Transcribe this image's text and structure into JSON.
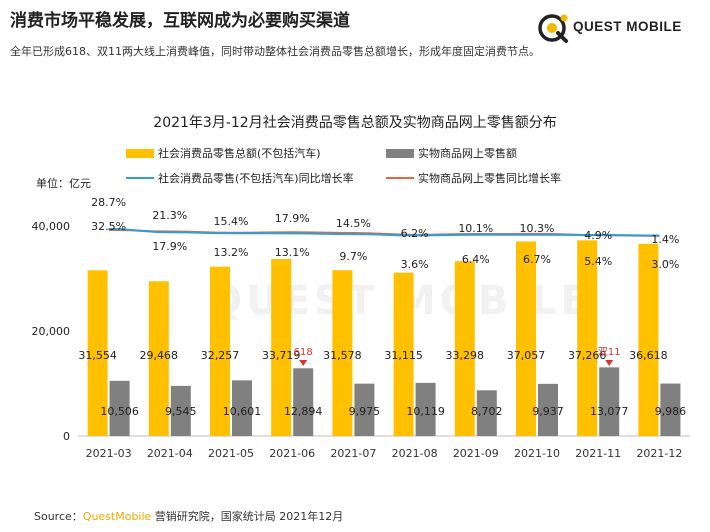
{
  "header": {
    "title": "消费市场平稳发展，互联网成为必要购买渠道",
    "subtitle": "全年已形成618、双11两大线上消费峰值，同时带动整体社会消费品零售总额增长，形成年度固定消费节点。"
  },
  "logo": {
    "text": "QUEST MOBILE"
  },
  "watermark": "QUEST MOBILE",
  "footer": {
    "prefix": "Source：",
    "brand": "QuestMobile",
    "rest": " 营销研究院，国家统计局 2021年12月"
  },
  "colors": {
    "total_bar": "#ffc000",
    "online_bar": "#808080",
    "total_line": "#2e9fd8",
    "online_line": "#e8663c",
    "accent": "#f0a800",
    "event": "#e0302e"
  },
  "chart_data": {
    "type": "bar",
    "title": "2021年3月-12月社会消费品零售总额及实物商品网上零售额分布",
    "unit_label": "单位：亿元",
    "categories": [
      "2021-03",
      "2021-04",
      "2021-05",
      "2021-06",
      "2021-07",
      "2021-08",
      "2021-09",
      "2021-10",
      "2021-11",
      "2021-12"
    ],
    "ylim": [
      0,
      50000
    ],
    "yticks": [
      {
        "value": 0,
        "label": "0"
      },
      {
        "value": 20000,
        "label": "20,000"
      },
      {
        "value": 40000,
        "label": "40,000"
      }
    ],
    "series": [
      {
        "name": "社会消费品零售总额(不包括汽车)",
        "kind": "bar",
        "values": [
          31554,
          29468,
          32257,
          33719,
          31578,
          31115,
          33298,
          37057,
          37266,
          36618
        ],
        "labels": [
          "31,554",
          "29,468",
          "32,257",
          "33,719",
          "31,578",
          "31,115",
          "33,298",
          "37,057",
          "37,266",
          "36,618"
        ]
      },
      {
        "name": "实物商品网上零售额",
        "kind": "bar",
        "values": [
          10506,
          9545,
          10601,
          12894,
          9975,
          10119,
          8702,
          9937,
          13077,
          9986
        ],
        "labels": [
          "10,506",
          "9,545",
          "10,601",
          "12,894",
          "9,975",
          "10,119",
          "8,702",
          "9,937",
          "13,077",
          "9,986"
        ]
      },
      {
        "name": "社会消费品零售(不包括汽车)同比增长率",
        "kind": "line",
        "values": [
          32.5,
          17.9,
          13.2,
          13.1,
          9.7,
          3.6,
          6.4,
          6.7,
          5.4,
          3.0
        ],
        "labels": [
          "32.5%",
          "17.9%",
          "13.2%",
          "13.1%",
          "9.7%",
          "3.6%",
          "6.4%",
          "6.7%",
          "5.4%",
          "3.0%"
        ]
      },
      {
        "name": "实物商品网上零售同比增长率",
        "kind": "line",
        "values": [
          28.7,
          21.3,
          15.4,
          17.9,
          14.5,
          6.2,
          10.1,
          10.3,
          4.9,
          1.4
        ],
        "labels": [
          "28.7%",
          "21.3%",
          "15.4%",
          "17.9%",
          "14.5%",
          "6.2%",
          "10.1%",
          "10.3%",
          "4.9%",
          "1.4%"
        ]
      }
    ],
    "annotations": [
      {
        "category": "2021-06",
        "text": "618"
      },
      {
        "category": "2021-11",
        "text": "双11"
      }
    ],
    "grid": false,
    "legend_position": "top"
  }
}
